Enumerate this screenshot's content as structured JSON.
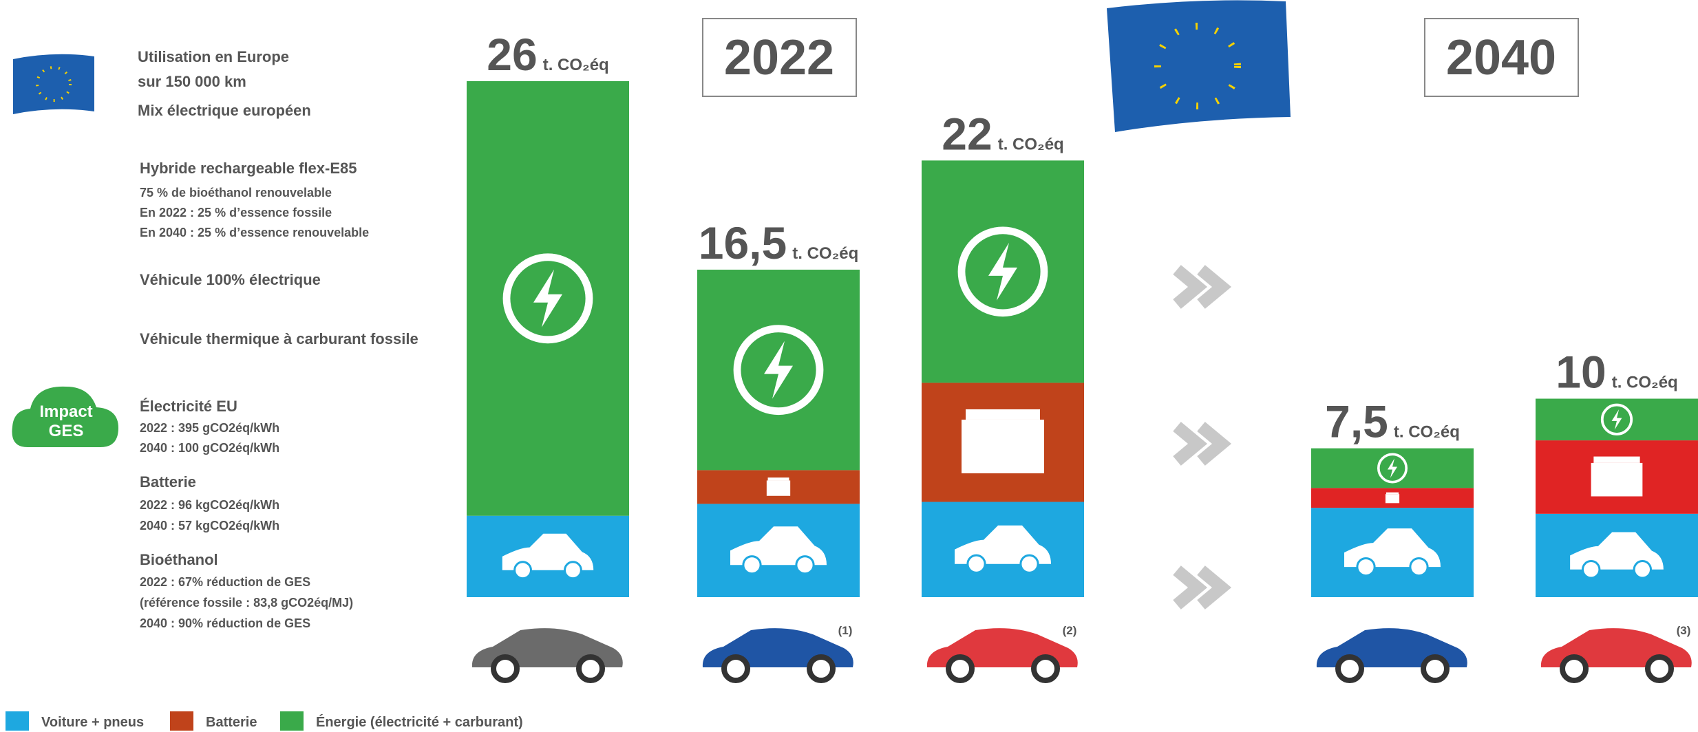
{
  "chart_data": {
    "type": "stacked-bar",
    "unit": "t. CO₂éq",
    "groups": [
      "2022",
      "2040"
    ],
    "totals": [
      26,
      16.5,
      22,
      7.5,
      10
    ],
    "total_labels": [
      "26",
      "16,5",
      "22",
      "7,5",
      "10"
    ],
    "footnotes": [
      null,
      "(1)",
      "(2)",
      null,
      "(3)"
    ],
    "series": [
      {
        "name": "Voiture + pneus",
        "color": "#1ea8e0",
        "values": [
          4.1,
          4.7,
          4.8,
          4.5,
          4.2
        ]
      },
      {
        "name": "Batterie",
        "color": "#c0431b",
        "colors": [
          "#c0431b",
          "#c0431b",
          "#c0431b",
          "#e02424",
          "#e02424"
        ],
        "values": [
          0,
          1.7,
          6.0,
          1.0,
          3.7
        ]
      },
      {
        "name": "Énergie (électricité + carburant)",
        "color": "#3aaa4a",
        "values": [
          21.9,
          10.1,
          11.2,
          2.0,
          2.1
        ]
      }
    ]
  },
  "sidebar": {
    "usage": [
      "Utilisation en Europe",
      "sur 150 000 km",
      "Mix électrique européen"
    ],
    "vehicles": [
      {
        "title": "Hybride rechargeable flex-E85",
        "lines": [
          "75 % de bioéthanol renouvelable",
          "En 2022 : 25 % d’essence fossile",
          "En 2040 : 25 % d’essence renouvelable"
        ]
      },
      {
        "title": "Véhicule 100% électrique"
      },
      {
        "title": "Véhicule thermique à carburant fossile"
      }
    ],
    "impact_badge": [
      "Impact",
      "GES"
    ],
    "impacts": [
      {
        "title": "Électricité EU",
        "lines": [
          "2022 : 395 gCO2éq/kWh",
          "2040 : 100 gCO2éq/kWh"
        ]
      },
      {
        "title": "Batterie",
        "lines": [
          "2022 : 96 kgCO2éq/kWh",
          "2040 : 57 kgCO2éq/kWh"
        ]
      },
      {
        "title": "Bioéthanol",
        "lines": [
          "2022 : 67% réduction de GES",
          "(référence fossile : 83,8 gCO2éq/MJ)",
          "2040 : 90% réduction de GES"
        ]
      }
    ]
  }
}
